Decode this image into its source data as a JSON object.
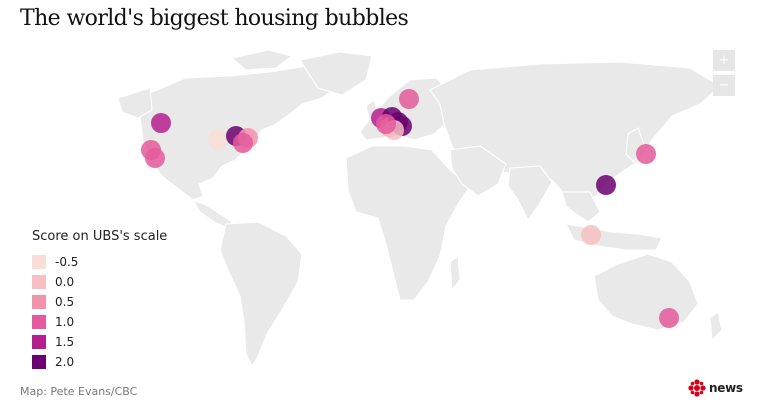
{
  "title": "The world's biggest housing bubbles",
  "zoom": {
    "in_label": "+",
    "out_label": "−"
  },
  "legend": {
    "title": "Score on UBS's scale",
    "items": [
      {
        "label": "-0.5",
        "color": "#f9ddd7"
      },
      {
        "label": "0.0",
        "color": "#f7bfc2"
      },
      {
        "label": "0.5",
        "color": "#f292ab"
      },
      {
        "label": "1.0",
        "color": "#e45a9c"
      },
      {
        "label": "1.5",
        "color": "#b41f8d"
      },
      {
        "label": "2.0",
        "color": "#6c0071"
      }
    ]
  },
  "credit": "Map: Pete Evans/CBC",
  "brand": {
    "text": "news",
    "icon": "cbc-gem-icon",
    "color": "#d6001c"
  },
  "map": {
    "land_color": "#e9e9e9",
    "bubble_opacity": 0.85
  }
}
